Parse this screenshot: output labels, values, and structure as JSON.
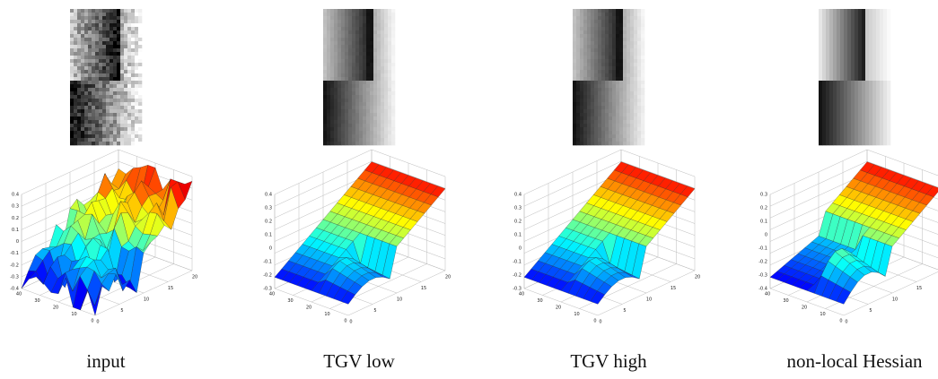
{
  "panels": [
    {
      "caption": "input",
      "zticks": [
        0.4,
        0.3,
        0.2,
        0.1,
        0,
        -0.1,
        -0.2,
        -0.3,
        -0.4
      ],
      "xticks": [
        40,
        30,
        20,
        10,
        0
      ],
      "yticks": [
        0,
        5,
        10,
        15,
        20
      ]
    },
    {
      "caption": "TGV low",
      "zticks": [
        0.4,
        0.3,
        0.2,
        0.1,
        0,
        -0.1,
        -0.2,
        -0.3
      ],
      "xticks": [
        40,
        30,
        20,
        10,
        0
      ],
      "yticks": [
        0,
        5,
        10,
        15,
        20
      ]
    },
    {
      "caption": "TGV high",
      "zticks": [
        0.4,
        0.3,
        0.2,
        0.1,
        0,
        -0.1,
        -0.2,
        -0.3
      ],
      "xticks": [
        40,
        30,
        20,
        10,
        0
      ],
      "yticks": [
        0,
        5,
        10,
        15,
        20
      ]
    },
    {
      "caption": "non-local Hessian",
      "zticks": [
        0.3,
        0.2,
        0.1,
        0,
        -0.1,
        -0.2,
        -0.3,
        -0.4
      ],
      "xticks": [
        40,
        30,
        20,
        10,
        0
      ],
      "yticks": [
        0,
        5,
        10,
        15,
        20
      ]
    }
  ]
}
